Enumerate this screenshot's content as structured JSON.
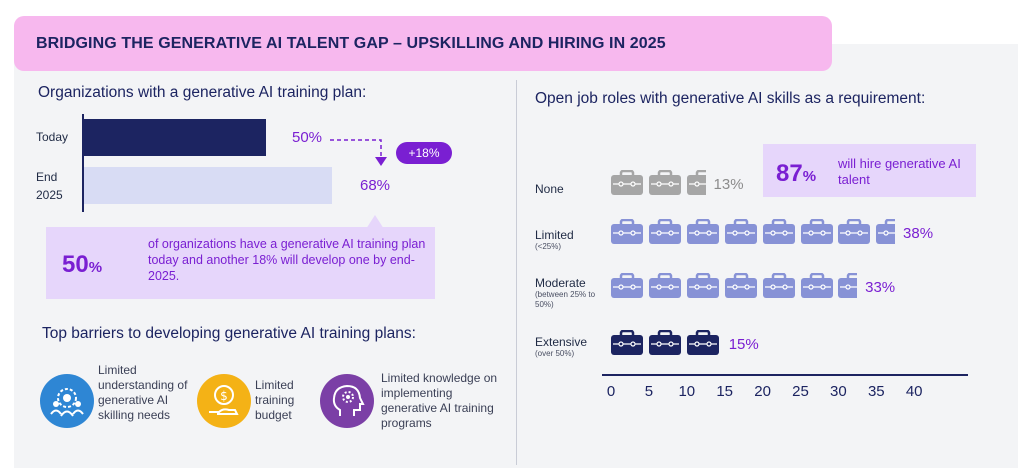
{
  "header": {
    "title": "BRIDGING THE GENERATIVE AI TALENT GAP – UPSKILLING AND HIRING IN 2025"
  },
  "training_plan": {
    "title": "Organizations with a generative AI training plan:",
    "bars": [
      {
        "label": "Today",
        "value_label": "50%"
      },
      {
        "label": "End 2025",
        "value_label": "68%"
      }
    ],
    "delta_label": "+18%",
    "callout": {
      "big_number": "50",
      "big_unit": "%",
      "text": "of organizations have a generative AI training plan today and another 18% will develop one by end-2025."
    }
  },
  "barriers": {
    "title": "Top barriers to developing generative AI training plans:",
    "items": [
      {
        "text": "Limited understanding of generative AI skilling needs",
        "icon": "people-gear-icon",
        "color": "#2e86d4"
      },
      {
        "text": "Limited training budget",
        "icon": "money-hand-icon",
        "color": "#f4b216"
      },
      {
        "text": "Limited knowledge on implementing generative AI training programs",
        "icon": "head-gear-icon",
        "color": "#7b3fa6"
      }
    ]
  },
  "open_roles": {
    "title": "Open job roles with generative AI skills as a requirement:",
    "rows": [
      {
        "label": "None",
        "sublabel": "",
        "value_label": "13%",
        "icon_color": "#a6a6a6",
        "label_color": "#8c8c8c"
      },
      {
        "label": "Limited",
        "sublabel": "(<25%)",
        "value_label": "38%",
        "icon_color": "#8792d6",
        "label_color": "#7a1fd2"
      },
      {
        "label": "Moderate",
        "sublabel": "(between 25% to 50%)",
        "value_label": "33%",
        "icon_color": "#8792d6",
        "label_color": "#7a1fd2"
      },
      {
        "label": "Extensive",
        "sublabel": "(over 50%)",
        "value_label": "15%",
        "icon_color": "#1c2461",
        "label_color": "#7a1fd2"
      }
    ],
    "callout": {
      "big_number": "87",
      "big_unit": "%",
      "text": "will hire generative AI talent"
    },
    "axis_ticks": [
      "0",
      "5",
      "10",
      "15",
      "20",
      "25",
      "30",
      "35",
      "40"
    ]
  },
  "chart_data": [
    {
      "type": "bar",
      "orientation": "horizontal",
      "title": "Organizations with a generative AI training plan:",
      "categories": [
        "Today",
        "End 2025"
      ],
      "values": [
        50,
        68
      ],
      "unit": "%",
      "annotation": "+18%"
    },
    {
      "type": "bar",
      "orientation": "horizontal",
      "style": "pictograph",
      "title": "Open job roles with generative AI skills as a requirement:",
      "categories": [
        "None",
        "Limited (<25%)",
        "Moderate (between 25% to 50%)",
        "Extensive (over 50%)"
      ],
      "values": [
        13,
        38,
        33,
        15
      ],
      "unit": "%",
      "xlim": [
        0,
        40
      ],
      "xticks": [
        0,
        5,
        10,
        15,
        20,
        25,
        30,
        35,
        40
      ]
    }
  ]
}
